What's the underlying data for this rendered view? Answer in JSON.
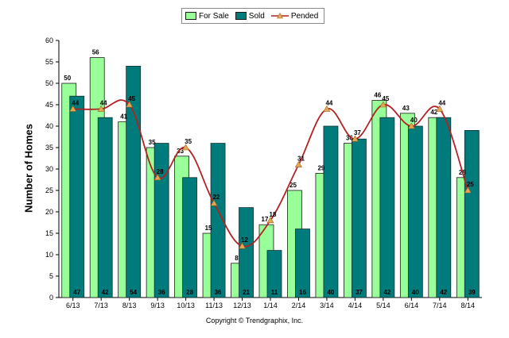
{
  "chart_data": {
    "type": "bar",
    "categories": [
      "6/13",
      "7/13",
      "8/13",
      "9/13",
      "10/13",
      "11/13",
      "12/13",
      "1/14",
      "2/14",
      "3/14",
      "4/14",
      "5/14",
      "6/14",
      "7/14",
      "8/14"
    ],
    "series": [
      {
        "name": "For Sale",
        "kind": "bar",
        "color": "#99ff99",
        "values": [
          50,
          56,
          41,
          35,
          33,
          15,
          8,
          17,
          25,
          29,
          36,
          46,
          43,
          42,
          28
        ]
      },
      {
        "name": "Sold",
        "kind": "bar",
        "color": "#007b7b",
        "values": [
          47,
          42,
          54,
          36,
          28,
          36,
          21,
          11,
          16,
          40,
          37,
          42,
          40,
          42,
          39
        ]
      },
      {
        "name": "Pended",
        "kind": "line",
        "color": "#b22222",
        "marker_color": "#e3a857",
        "values": [
          44,
          44,
          45,
          28,
          35,
          22,
          12,
          18,
          31,
          44,
          37,
          45,
          40,
          44,
          25
        ]
      }
    ],
    "ylabel": "Number of Homes",
    "xlabel": "",
    "ylim": [
      0,
      60
    ],
    "yticks": [
      0,
      5,
      10,
      15,
      20,
      25,
      30,
      35,
      40,
      45,
      50,
      55,
      60
    ],
    "legend_position": "top-center"
  },
  "footer": {
    "copyright": "Copyright © Trendgraphix, Inc."
  }
}
